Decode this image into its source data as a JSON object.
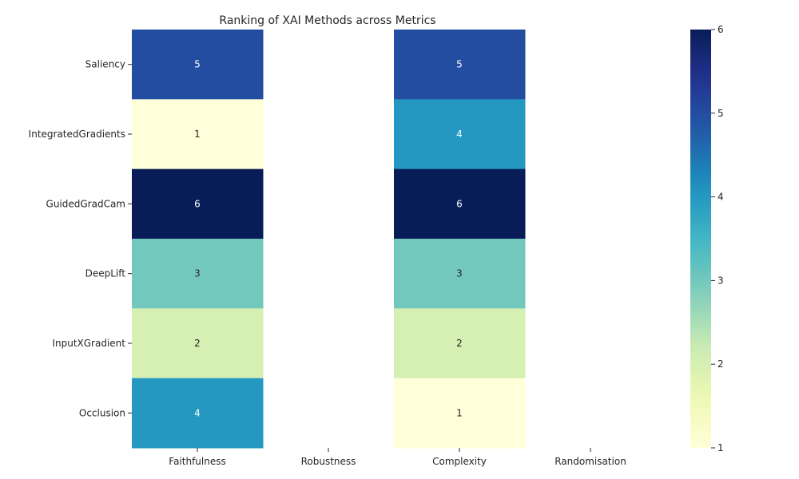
{
  "chart_data": {
    "type": "heatmap",
    "title": "Ranking of XAI Methods across Metrics",
    "rows": [
      "Saliency",
      "IntegratedGradients",
      "GuidedGradCam",
      "DeepLift",
      "InputXGradient",
      "Occlusion"
    ],
    "columns": [
      "Faithfulness",
      "Robustness",
      "Complexity",
      "Randomisation"
    ],
    "values": [
      [
        5,
        null,
        5,
        null
      ],
      [
        1,
        null,
        4,
        null
      ],
      [
        6,
        null,
        6,
        null
      ],
      [
        3,
        null,
        3,
        null
      ],
      [
        2,
        null,
        2,
        null
      ],
      [
        4,
        null,
        1,
        null
      ]
    ],
    "colormap": "YlGnBu",
    "colorbar": {
      "min": 1,
      "max": 6,
      "ticks": [
        1,
        2,
        3,
        4,
        5,
        6
      ]
    },
    "annotate": true
  }
}
